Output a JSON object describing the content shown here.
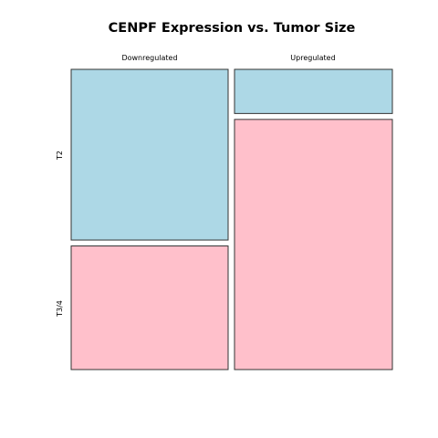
{
  "chart_data": {
    "type": "mosaic",
    "title": "CENPF Expression vs. Tumor Size",
    "x_var_categories": [
      "Downregulated",
      "Upregulated"
    ],
    "y_var_categories": [
      "T2",
      "T3/4"
    ],
    "counts": {
      "Downregulated": {
        "T2": 58,
        "T3/4": 42
      },
      "Upregulated": {
        "T2": 15,
        "T3/4": 85
      }
    },
    "colors": {
      "T2": "#add8e6",
      "T3/4": "#ffc0cb"
    }
  }
}
